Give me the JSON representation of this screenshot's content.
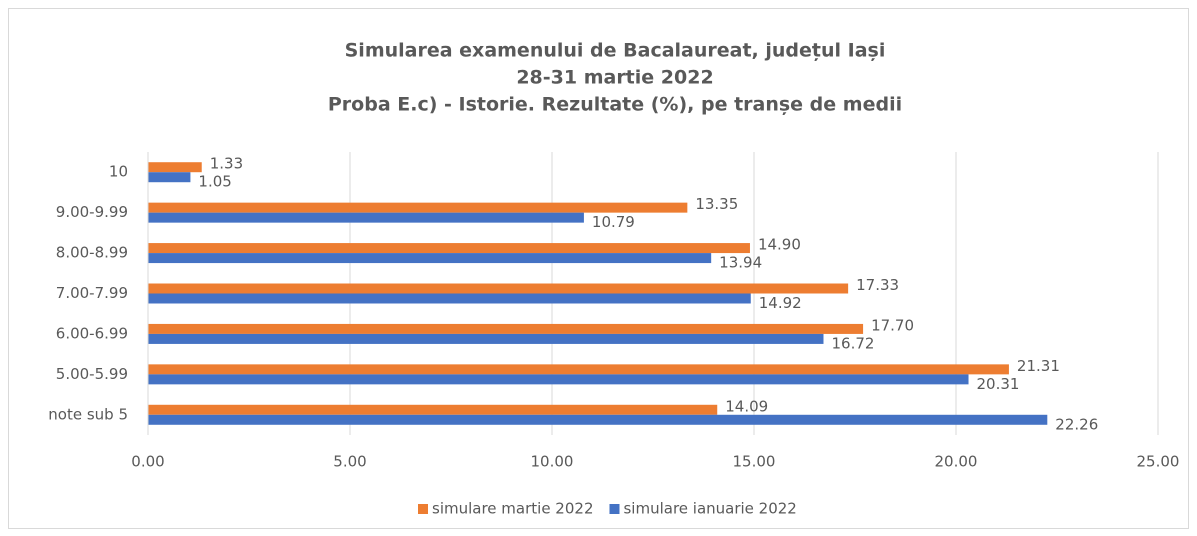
{
  "chart_data": {
    "type": "barh",
    "title": [
      "Simularea examenului de Bacalaureat, județul Iași",
      "28-31 martie 2022",
      "Proba E.c) - Istorie. Rezultate (%), pe tranșe de medii"
    ],
    "categories": [
      "10",
      "9.00-9.99",
      "8.00-8.99",
      "7.00-7.99",
      "6.00-6.99",
      "5.00-5.99",
      "note sub 5"
    ],
    "series": [
      {
        "name": "simulare martie 2022",
        "color": "#ed7d31",
        "values": [
          1.33,
          13.35,
          14.9,
          17.33,
          17.7,
          21.31,
          14.09
        ],
        "value_labels": [
          "1.33",
          "13.35",
          "14.90",
          "17.33",
          "17.70",
          "21.31",
          "14.09"
        ]
      },
      {
        "name": "simulare ianuarie 2022",
        "color": "#4472c4",
        "values": [
          1.05,
          10.79,
          13.94,
          14.92,
          16.72,
          20.31,
          22.26
        ],
        "value_labels": [
          "1.05",
          "10.79",
          "13.94",
          "14.92",
          "16.72",
          "20.31",
          "22.26"
        ]
      }
    ],
    "xlim": [
      0,
      25
    ],
    "xticks": [
      {
        "value": 0,
        "label": "0.00"
      },
      {
        "value": 5,
        "label": "5.00"
      },
      {
        "value": 10,
        "label": "10.00"
      },
      {
        "value": 15,
        "label": "15.00"
      },
      {
        "value": 20,
        "label": "20.00"
      },
      {
        "value": 25,
        "label": "25.00"
      }
    ],
    "grid": true,
    "legend": "bottom"
  }
}
